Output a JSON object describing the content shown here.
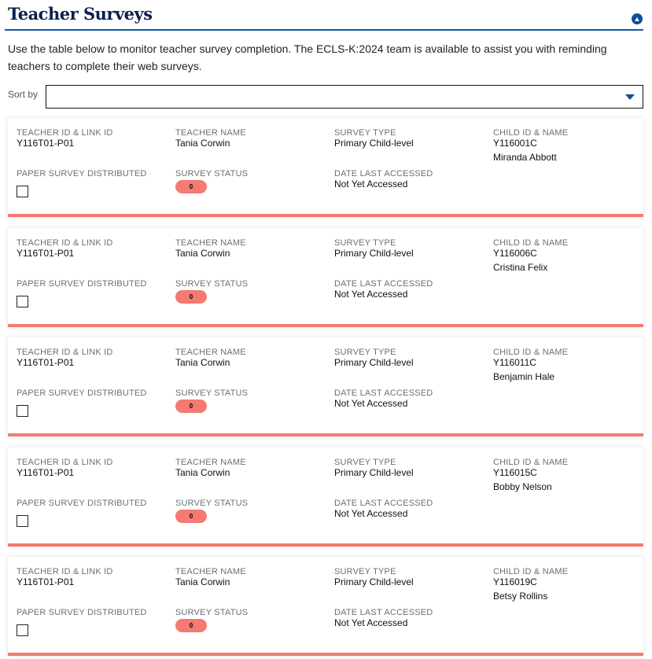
{
  "header": {
    "title": "Teacher Surveys",
    "description": "Use the table below to monitor teacher survey completion. The ECLS-K:2024 team is available to assist you with reminding teachers to complete their web surveys.",
    "collapse_icon": "chevron-up-circle-icon"
  },
  "sort": {
    "label": "Sort by",
    "value": ""
  },
  "labels": {
    "teacher_id": "TEACHER ID & LINK ID",
    "teacher_name": "TEACHER NAME",
    "survey_type": "SURVEY TYPE",
    "child": "CHILD ID & NAME",
    "paper": "PAPER SURVEY DISTRIBUTED",
    "status": "SURVEY STATUS",
    "accessed": "DATE LAST ACCESSED"
  },
  "status_color": "#f47a72",
  "cards": [
    {
      "teacher_id": "Y116T01-P01",
      "teacher_name": "Tania Corwin",
      "survey_type": "Primary Child-level",
      "child_id": "Y116001C",
      "child_name": "Miranda Abbott",
      "paper": false,
      "status": "0",
      "accessed": "Not Yet Accessed"
    },
    {
      "teacher_id": "Y116T01-P01",
      "teacher_name": "Tania Corwin",
      "survey_type": "Primary Child-level",
      "child_id": "Y116006C",
      "child_name": "Cristina Felix",
      "paper": false,
      "status": "0",
      "accessed": "Not Yet Accessed"
    },
    {
      "teacher_id": "Y116T01-P01",
      "teacher_name": "Tania Corwin",
      "survey_type": "Primary Child-level",
      "child_id": "Y116011C",
      "child_name": "Benjamin Hale",
      "paper": false,
      "status": "0",
      "accessed": "Not Yet Accessed"
    },
    {
      "teacher_id": "Y116T01-P01",
      "teacher_name": "Tania Corwin",
      "survey_type": "Primary Child-level",
      "child_id": "Y116015C",
      "child_name": "Bobby Nelson",
      "paper": false,
      "status": "0",
      "accessed": "Not Yet Accessed"
    },
    {
      "teacher_id": "Y116T01-P01",
      "teacher_name": "Tania Corwin",
      "survey_type": "Primary Child-level",
      "child_id": "Y116019C",
      "child_name": "Betsy Rollins",
      "paper": false,
      "status": "0",
      "accessed": "Not Yet Accessed"
    }
  ]
}
